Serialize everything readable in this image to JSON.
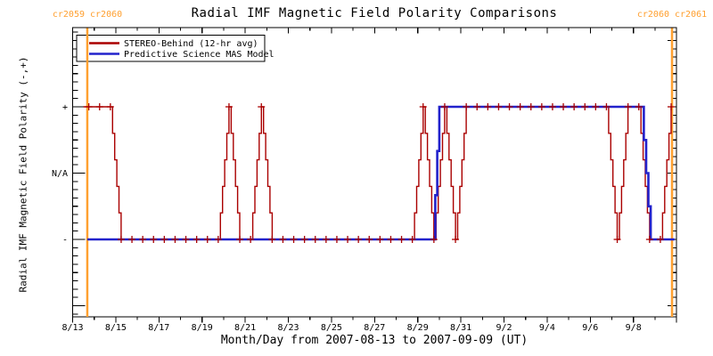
{
  "title": "Radial IMF Magnetic Field Polarity Comparisons",
  "annotations": {
    "top_left": "cr2059 cr2060",
    "top_right": "cr2060 cr2061"
  },
  "colors": {
    "stereo": "#aa0000",
    "model": "#2222cc",
    "carrington": "#ffa030",
    "axis": "#000000",
    "background": "#ffffff"
  },
  "chart_data": {
    "type": "line",
    "title": "Radial IMF Magnetic Field Polarity Comparisons",
    "xlabel": "Month/Day from 2007-08-13 to 2007-09-09 (UT)",
    "ylabel": "Radial IMF Magnetic Field Polarity (-,+)",
    "x_unit": "days since 2007-08-13 00:00 UT",
    "xlim": [
      0,
      28
    ],
    "ylim": [
      -2.2,
      2.2
    ],
    "grid": false,
    "legend_position": "top-left",
    "x_ticks": [
      {
        "day": 0,
        "label": "8/13"
      },
      {
        "day": 2,
        "label": "8/15"
      },
      {
        "day": 4,
        "label": "8/17"
      },
      {
        "day": 6,
        "label": "8/19"
      },
      {
        "day": 8,
        "label": "8/21"
      },
      {
        "day": 10,
        "label": "8/23"
      },
      {
        "day": 12,
        "label": "8/25"
      },
      {
        "day": 14,
        "label": "8/27"
      },
      {
        "day": 16,
        "label": "8/29"
      },
      {
        "day": 18,
        "label": "8/31"
      },
      {
        "day": 20,
        "label": "9/2"
      },
      {
        "day": 22,
        "label": "9/4"
      },
      {
        "day": 24,
        "label": "9/6"
      },
      {
        "day": 26,
        "label": "9/8"
      }
    ],
    "x_minor_tick_interval_days": 1,
    "y_ticks": [
      {
        "value": 1,
        "label": "+"
      },
      {
        "value": 0,
        "label": "N/A"
      },
      {
        "value": -1,
        "label": "-"
      }
    ],
    "series": [
      {
        "name": "STEREO-Behind (12-hr avg)",
        "color_key": "stereo",
        "style": "staircase",
        "markers": "plus",
        "marker_interval_days": 0.5,
        "marker_start_day": 0.75,
        "points": [
          [
            0.5,
            1
          ],
          [
            1.75,
            1
          ],
          [
            2.25,
            -1
          ],
          [
            6.75,
            -1
          ],
          [
            7.25,
            1
          ],
          [
            7.75,
            -1
          ],
          [
            8.25,
            -1
          ],
          [
            8.75,
            1
          ],
          [
            9.25,
            -1
          ],
          [
            15.75,
            -1
          ],
          [
            16.25,
            1
          ],
          [
            16.75,
            -1
          ],
          [
            17.25,
            1
          ],
          [
            17.75,
            -1
          ],
          [
            18.25,
            1
          ],
          [
            24.75,
            1
          ],
          [
            25.25,
            -1
          ],
          [
            25.75,
            1
          ],
          [
            26.25,
            1
          ],
          [
            26.75,
            -1
          ],
          [
            27.25,
            -1
          ],
          [
            27.75,
            1
          ],
          [
            27.79,
            1
          ]
        ]
      },
      {
        "name": "Predictive Science MAS Model",
        "color_key": "model",
        "style": "staircase",
        "markers": "none",
        "points": [
          [
            0.68,
            -1
          ],
          [
            16.72,
            -1
          ],
          [
            17.0,
            1
          ],
          [
            26.38,
            1
          ],
          [
            26.8,
            -1
          ],
          [
            27.91,
            -1
          ]
        ]
      }
    ],
    "carrington_lines": [
      {
        "day": 0.68,
        "top_label": "cr2059 cr2060"
      },
      {
        "day": 27.79,
        "top_label": "cr2060 cr2061"
      }
    ]
  }
}
